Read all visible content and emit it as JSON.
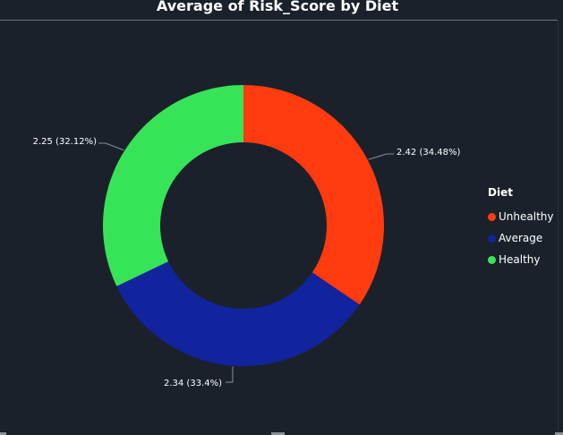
{
  "chart_data": {
    "type": "pie",
    "variant": "donut",
    "title": "Average of Risk_Score by Diet",
    "legend_title": "Diet",
    "legend_placement": "right",
    "categories": [
      "Unhealthy",
      "Average",
      "Healthy"
    ],
    "values": [
      2.42,
      2.34,
      2.25
    ],
    "percents": [
      34.48,
      33.4,
      32.12
    ],
    "data_labels": [
      "2.42 (34.48%)",
      "2.34 (33.4%)",
      "2.25 (32.12%)"
    ],
    "colors": [
      "#ff3b0f",
      "#12239e",
      "#37e458"
    ]
  }
}
